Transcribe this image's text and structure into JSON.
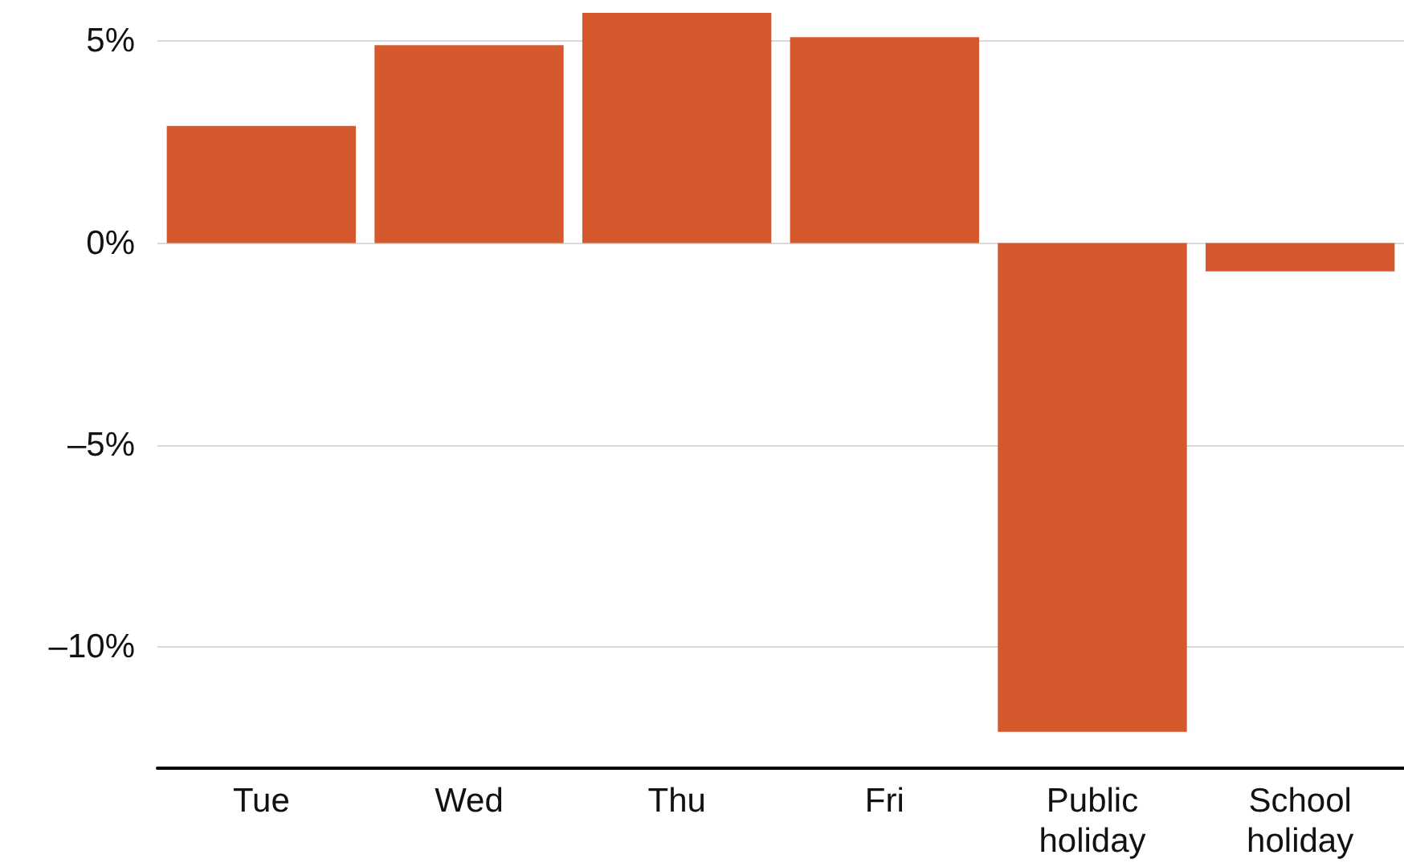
{
  "chart_data": {
    "type": "bar",
    "categories": [
      "Tue",
      "Wed",
      "Thu",
      "Fri",
      "Public holiday",
      "School holiday"
    ],
    "values": [
      2.9,
      4.9,
      5.7,
      5.1,
      -12.1,
      -0.7
    ],
    "color": "#d6592d",
    "ylim": [
      -13,
      5.7
    ],
    "yticks": [
      {
        "value": -10,
        "label": "–10%"
      },
      {
        "value": -5,
        "label": "–5%"
      },
      {
        "value": 0,
        "label": "0%"
      },
      {
        "value": 5,
        "label": "5%"
      }
    ],
    "grid": "y"
  }
}
